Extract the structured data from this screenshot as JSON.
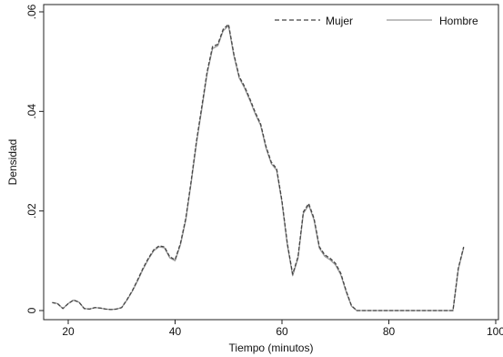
{
  "chart_data": {
    "type": "line",
    "xlabel": "Tiempo (minutos)",
    "ylabel": "Densidad",
    "xlim": [
      16,
      100
    ],
    "ylim": [
      0,
      0.06
    ],
    "x_ticks": [
      {
        "value": 20,
        "label": "20"
      },
      {
        "value": 40,
        "label": "40"
      },
      {
        "value": 60,
        "label": "60"
      },
      {
        "value": 80,
        "label": "80"
      },
      {
        "value": 100,
        "label": "100"
      }
    ],
    "y_ticks": [
      {
        "value": 0,
        "label": "0"
      },
      {
        "value": 0.02,
        "label": ".02"
      },
      {
        "value": 0.04,
        "label": ".04"
      },
      {
        "value": 0.06,
        "label": ".06"
      }
    ],
    "legend_position": "top-right",
    "grid": false,
    "series": [
      {
        "name": "Mujer",
        "color": "#444444",
        "dash": "dashed",
        "x": [
          17,
          18,
          19,
          20,
          21,
          22,
          23,
          24,
          25,
          26,
          27,
          28,
          29,
          30,
          31,
          32,
          33,
          34,
          35,
          36,
          37,
          38,
          39,
          40,
          41,
          42,
          43,
          44,
          45,
          46,
          47,
          48,
          49,
          50,
          51,
          52,
          53,
          54,
          55,
          56,
          57,
          58,
          59,
          60,
          61,
          62,
          63,
          64,
          65,
          66,
          67,
          68,
          69,
          70,
          71,
          72,
          73,
          74,
          76,
          80,
          85,
          90,
          92,
          93,
          94
        ],
        "y": [
          0.0016,
          0.0014,
          0.0004,
          0.0014,
          0.0021,
          0.0017,
          0.0004,
          0.0003,
          0.0006,
          0.0005,
          0.0003,
          0.0002,
          0.0003,
          0.0006,
          0.0022,
          0.004,
          0.0062,
          0.0085,
          0.0105,
          0.0122,
          0.013,
          0.0128,
          0.0108,
          0.0102,
          0.0135,
          0.0185,
          0.026,
          0.034,
          0.041,
          0.048,
          0.053,
          0.0535,
          0.0565,
          0.0575,
          0.0515,
          0.047,
          0.045,
          0.0425,
          0.0398,
          0.0375,
          0.033,
          0.0298,
          0.0285,
          0.022,
          0.0135,
          0.0073,
          0.0108,
          0.0198,
          0.0215,
          0.0185,
          0.0128,
          0.0112,
          0.0105,
          0.0095,
          0.0075,
          0.004,
          0.001,
          0.0,
          0.0,
          0.0,
          0.0,
          0.0,
          0.0,
          0.0085,
          0.0128
        ]
      },
      {
        "name": "Hombre",
        "color": "#999999",
        "dash": "solid",
        "x": [
          17,
          18,
          19,
          20,
          21,
          22,
          23,
          24,
          25,
          26,
          27,
          28,
          29,
          30,
          31,
          32,
          33,
          34,
          35,
          36,
          37,
          38,
          39,
          40,
          41,
          42,
          43,
          44,
          45,
          46,
          47,
          48,
          49,
          50,
          51,
          52,
          53,
          54,
          55,
          56,
          57,
          58,
          59,
          60,
          61,
          62,
          63,
          64,
          65,
          66,
          67,
          68,
          69,
          70,
          71,
          72,
          73,
          74,
          76,
          80,
          85,
          90,
          92,
          93,
          94
        ],
        "y": [
          0.0016,
          0.0014,
          0.0004,
          0.0014,
          0.0021,
          0.0017,
          0.0004,
          0.0003,
          0.0006,
          0.0005,
          0.0003,
          0.0002,
          0.0003,
          0.0006,
          0.0021,
          0.0039,
          0.006,
          0.0083,
          0.0103,
          0.012,
          0.0128,
          0.0126,
          0.0106,
          0.01,
          0.0132,
          0.0182,
          0.0256,
          0.0336,
          0.0405,
          0.0476,
          0.0526,
          0.0532,
          0.0562,
          0.0572,
          0.0512,
          0.0467,
          0.0447,
          0.0422,
          0.0395,
          0.0372,
          0.0327,
          0.0295,
          0.0282,
          0.0217,
          0.0132,
          0.007,
          0.0105,
          0.0195,
          0.0212,
          0.0182,
          0.0125,
          0.0109,
          0.0102,
          0.0092,
          0.0072,
          0.0038,
          0.0009,
          0.0,
          0.0,
          0.0,
          0.0,
          0.0,
          0.0,
          0.0083,
          0.0126
        ]
      }
    ]
  }
}
